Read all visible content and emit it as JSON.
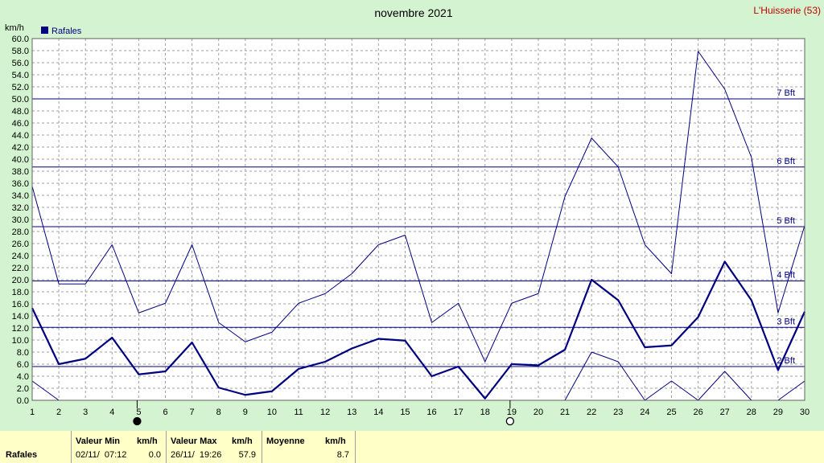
{
  "chart_data": {
    "type": "line",
    "title": "novembre 2021",
    "station": "L'Huisserie (53)",
    "ylabel": "km/h",
    "legend": "Rafales",
    "legend_color": "#000080",
    "xlim": [
      1,
      30
    ],
    "ylim": [
      0,
      60
    ],
    "x": [
      1,
      2,
      3,
      4,
      5,
      6,
      7,
      8,
      9,
      10,
      11,
      12,
      13,
      14,
      15,
      16,
      17,
      18,
      19,
      20,
      21,
      22,
      23,
      24,
      25,
      26,
      27,
      28,
      29,
      30
    ],
    "series": [
      {
        "name": "Max",
        "values": [
          35.5,
          19.3,
          19.3,
          25.8,
          14.5,
          16.1,
          25.8,
          12.9,
          9.7,
          11.3,
          16.1,
          17.7,
          21.0,
          25.8,
          27.4,
          12.9,
          16.1,
          6.4,
          16.1,
          17.7,
          33.8,
          43.5,
          38.7,
          25.8,
          21.0,
          57.9,
          51.6,
          40.3,
          14.5,
          29.0
        ]
      },
      {
        "name": "Moyenne",
        "values": [
          15.3,
          6.0,
          6.9,
          10.4,
          4.3,
          4.8,
          9.6,
          2.1,
          0.9,
          1.5,
          5.2,
          6.4,
          8.6,
          10.2,
          9.9,
          4.0,
          5.6,
          0.3,
          6.0,
          5.8,
          8.4,
          20.0,
          16.6,
          8.8,
          9.1,
          13.8,
          23.0,
          16.6,
          5.0,
          14.7
        ]
      },
      {
        "name": "Min",
        "values": [
          3.2,
          0.0,
          0.0,
          0.0,
          0.0,
          0.0,
          0.0,
          0.0,
          0.0,
          0.0,
          0.0,
          0.0,
          0.0,
          0.0,
          0.0,
          0.0,
          0.0,
          0.0,
          0.0,
          0.0,
          0.0,
          8.0,
          6.4,
          0.0,
          3.2,
          0.0,
          4.8,
          0.0,
          0.0,
          3.2
        ]
      }
    ],
    "bft_lines": [
      {
        "label": "2 Bft",
        "value": 5.6
      },
      {
        "label": "3 Bft",
        "value": 12.1
      },
      {
        "label": "4 Bft",
        "value": 19.8
      },
      {
        "label": "5 Bft",
        "value": 28.8
      },
      {
        "label": "6 Bft",
        "value": 38.7
      },
      {
        "label": "7 Bft",
        "value": 50.0
      }
    ],
    "moon_phases": [
      {
        "day": 5,
        "phase": "new"
      },
      {
        "day": 19,
        "phase": "full"
      }
    ],
    "grid": true
  },
  "stats": {
    "row_label": "Rafales",
    "min_header": "Valeur Min",
    "min_unit": "km/h",
    "min_date": "02/11/  07:12",
    "min_value": "0.0",
    "max_header": "Valeur Max",
    "max_unit": "km/h",
    "max_date": "26/11/  19:26",
    "max_value": "57.9",
    "mean_header": "Moyenne",
    "mean_unit": "km/h",
    "mean_value": "8.7"
  }
}
